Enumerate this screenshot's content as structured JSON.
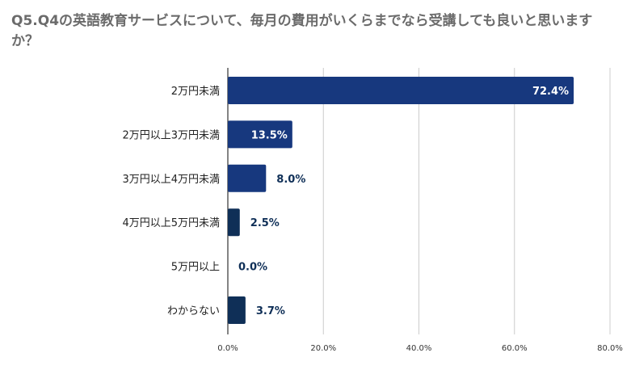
{
  "chart_data": {
    "type": "bar",
    "orientation": "horizontal",
    "title": "Q5.Q4の英語教育サービスについて、毎月の費用がいくらまでなら受講しても良いと思いますか？",
    "categories": [
      "2万円未満",
      "2万円以上3万円未満",
      "3万円以上4万円未満",
      "4万円以上5万円未満",
      "5万円以上",
      "わからない"
    ],
    "values": [
      72.4,
      13.5,
      8.0,
      2.5,
      0.0,
      3.7
    ],
    "value_labels": [
      "72.4%",
      "13.5%",
      "8.0%",
      "2.5%",
      "0.0%",
      "3.7%"
    ],
    "xlim": [
      0,
      80
    ],
    "xticks": [
      0,
      20,
      40,
      60,
      80
    ],
    "xtick_labels": [
      "0.0%",
      "20.0%",
      "40.0%",
      "60.0%",
      "80.0%"
    ],
    "grid": "vertical",
    "legend": "none",
    "xlabel": "",
    "ylabel": "",
    "bar_colors": [
      "#17387e",
      "#17387e",
      "#17387e",
      "#0f2f57",
      "#0f2f57",
      "#0f2f57"
    ],
    "label_inside_color": "#ffffff",
    "label_outside_color": "#0f2f57",
    "gridline_color": "#cccccc",
    "axis_color": "#333333"
  }
}
